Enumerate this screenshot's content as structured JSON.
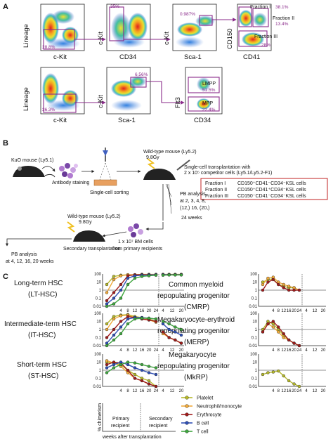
{
  "panels": {
    "A": "A",
    "B": "B",
    "C": "C"
  },
  "panelA": {
    "row1": [
      {
        "x_label": "c-Kit",
        "y_label": "Lineage",
        "gates": [
          "28.8%"
        ]
      },
      {
        "x_label": "CD34",
        "y_label": "c-Kit",
        "gates": [
          "35%"
        ]
      },
      {
        "x_label": "Sca-1",
        "y_label": "c-Kit",
        "gates": [
          "0.987%"
        ]
      },
      {
        "x_label": "CD41",
        "y_label": "CD150",
        "gates": [
          "Fraction I",
          "38.1%",
          "Fraction II",
          "13.4%",
          "Fraction III",
          "28%"
        ]
      }
    ],
    "row2": [
      {
        "x_label": "c-Kit",
        "y_label": "Lineage",
        "gates": [
          "36.3%"
        ]
      },
      {
        "x_label": "Sca-1",
        "y_label": "c-Kit",
        "gates": [
          "6.56%"
        ]
      },
      {
        "x_label": "CD34",
        "y_label": "Flt3",
        "gates": [
          "LMPP",
          "51.5%",
          "MPP",
          "22.4%"
        ]
      }
    ]
  },
  "panelB": {
    "kuo_mouse": "KuO mouse (Ly5.1)",
    "antibody_staining": "Antibody staining",
    "single_cell_sorting": "Single-cell sorting",
    "recipient1_line1": "Wild-type mouse (Ly5.2)",
    "recipient1_line2": "9.8Gy",
    "transplant_line1": "Single-cell transplantation with",
    "transplant_line2": "2 x 10⁵ competitor cells (Ly5.1/Ly5.2-F1)",
    "fractions": [
      {
        "name": "Fraction I",
        "phenotype": "CD150⁺CD41⁻CD34⁻KSL cells"
      },
      {
        "name": "Fraction II",
        "phenotype": "CD150⁺CD41⁺CD34⁻KSL cells"
      },
      {
        "name": "Fraction III",
        "phenotype": "CD150⁻CD41⁻CD34⁻KSL cells"
      }
    ],
    "pb_analysis_lines": [
      "PB analysis",
      "at 2, 3, 4, 8,",
      "(12,) 16, (20,)",
      "24 weeks"
    ],
    "bm_cells_line1": "1 x 10⁷ BM cells",
    "bm_cells_line2": "from primary recipients",
    "recipient2_line1": "Wild-type mouse (Ly5.2)",
    "recipient2_line2": "9.8Gy",
    "secondary_transplantation": "Secondary transplantation",
    "pb2_line1": "PB analysis",
    "pb2_line2": "at 4, 12, 16, 20 weeks"
  },
  "panelC": {
    "categories_left": [
      {
        "line1": "Long-term HSC",
        "line2": "(LT-HSC)"
      },
      {
        "line1": "Intermediate-term HSC",
        "line2": "(IT-HSC)"
      },
      {
        "line1": "Short-term HSC",
        "line2": "(ST-HSC)"
      }
    ],
    "categories_right": [
      {
        "line1": "Common myeloid",
        "line2": "repopulating progenitor",
        "line3": "(CMRP)"
      },
      {
        "line1": "Megakaryocyte-erythroid",
        "line2": "repopulating progenitor",
        "line3": "(MERP)"
      },
      {
        "line1": "Megakaryocyte",
        "line2": "repopulating progenitor",
        "line3": "(MkRP)"
      }
    ],
    "y_ticks": [
      "100",
      "10",
      "1",
      "0.1",
      "0.01"
    ],
    "x_ticks_left": [
      "4",
      "8",
      "12",
      "16",
      "20",
      "24"
    ],
    "x_ticks_right": [
      "4",
      "12",
      "20"
    ],
    "template": {
      "y_label": "% chimerism",
      "primary": "Primary",
      "recipient": "recipient",
      "secondary": "Secondary",
      "recipient2": "recipient",
      "x_label": "weeks after transplantation"
    },
    "legend": [
      {
        "name": "Platelet",
        "color": "#b5b82a"
      },
      {
        "name": "Neutrophil/monocyte",
        "color": "#f0a93a"
      },
      {
        "name": "Erythrocyte",
        "color": "#a01b1b"
      },
      {
        "name": "B cell",
        "color": "#2f4fb5"
      },
      {
        "name": "T cell",
        "color": "#3fa63f"
      }
    ]
  },
  "chart_data": [
    {
      "type": "line",
      "panel": "LT-HSC",
      "x": [
        2,
        3,
        4,
        8,
        12,
        16,
        20,
        24,
        4,
        12,
        16,
        20
      ],
      "series": [
        {
          "name": "Platelet",
          "values": [
            5,
            50,
            70,
            80,
            80,
            90,
            90,
            90,
            90,
            90,
            90,
            90
          ]
        },
        {
          "name": "Neutrophil/monocyte",
          "values": [
            0.5,
            20,
            60,
            80,
            80,
            85,
            85,
            85,
            85,
            85,
            85,
            85
          ]
        },
        {
          "name": "Erythrocyte",
          "values": [
            0.05,
            0.5,
            5,
            60,
            80,
            80,
            80,
            80,
            80,
            80,
            80,
            80
          ]
        },
        {
          "name": "B cell",
          "values": [
            0.02,
            0.1,
            1,
            30,
            60,
            70,
            75,
            80,
            80,
            80,
            80,
            80
          ]
        },
        {
          "name": "T cell",
          "values": [
            0.01,
            0.02,
            0.1,
            5,
            30,
            50,
            60,
            70,
            70,
            75,
            75,
            75
          ]
        }
      ]
    },
    {
      "type": "line",
      "panel": "IT-HSC",
      "x": [
        2,
        3,
        4,
        8,
        12,
        16,
        20,
        24,
        4,
        12,
        16,
        20
      ],
      "series": [
        {
          "name": "Platelet",
          "values": [
            5,
            40,
            60,
            70,
            40,
            30,
            20,
            10,
            0.5,
            0.1,
            0.05,
            0.02
          ]
        },
        {
          "name": "Neutrophil/monocyte",
          "values": [
            1,
            20,
            50,
            60,
            30,
            20,
            15,
            8,
            0.3,
            0.1,
            0.05,
            0.02
          ]
        },
        {
          "name": "Erythrocyte",
          "values": [
            0.1,
            1,
            10,
            40,
            30,
            20,
            15,
            10,
            0.5,
            0.1,
            0.05,
            0.02
          ]
        },
        {
          "name": "B cell",
          "values": [
            0.02,
            0.2,
            2,
            20,
            30,
            30,
            25,
            20,
            5,
            1,
            0.5,
            0.2
          ]
        },
        {
          "name": "T cell",
          "values": [
            0.01,
            0.05,
            0.3,
            5,
            20,
            25,
            25,
            20,
            10,
            5,
            2,
            1
          ]
        }
      ]
    },
    {
      "type": "line",
      "panel": "ST-HSC",
      "x": [
        2,
        3,
        4,
        8,
        12,
        16,
        20,
        24
      ],
      "series": [
        {
          "name": "Platelet",
          "values": [
            10,
            8,
            5,
            1,
            0.3,
            0.1,
            0.05,
            0.01
          ]
        },
        {
          "name": "Neutrophil/monocyte",
          "values": [
            15,
            8,
            3,
            0.5,
            0.1,
            0.05,
            0.02,
            0.01
          ]
        },
        {
          "name": "Erythrocyte",
          "values": [
            5,
            10,
            8,
            1,
            0.1,
            0.05,
            0.02,
            0.01
          ]
        },
        {
          "name": "B cell",
          "values": [
            2,
            5,
            10,
            5,
            2,
            1,
            0.5,
            0.3
          ]
        },
        {
          "name": "T cell",
          "values": [
            0.5,
            2,
            5,
            10,
            8,
            5,
            3,
            2
          ]
        }
      ]
    },
    {
      "type": "line",
      "panel": "CMRP",
      "x": [
        2,
        3,
        4,
        8,
        12,
        16,
        20,
        24
      ],
      "series": [
        {
          "name": "Platelet",
          "values": [
            10,
            20,
            25,
            5,
            3,
            2,
            2,
            1
          ]
        },
        {
          "name": "Neutrophil/monocyte",
          "values": [
            5,
            30,
            40,
            10,
            5,
            3,
            2,
            1
          ]
        },
        {
          "name": "Erythrocyte",
          "values": [
            1,
            10,
            20,
            5,
            2,
            1,
            1,
            1
          ]
        }
      ]
    },
    {
      "type": "line",
      "panel": "MERP",
      "x": [
        2,
        3,
        4,
        8,
        12,
        16,
        20,
        24
      ],
      "series": [
        {
          "name": "Platelet",
          "values": [
            1,
            10,
            5,
            1,
            0.2,
            0.05,
            0.02,
            0.01
          ]
        },
        {
          "name": "Neutrophil/monocyte",
          "values": [
            0.5,
            5,
            2,
            0.5,
            0.1,
            0.05,
            0.02,
            0.01
          ]
        },
        {
          "name": "Erythrocyte",
          "values": [
            0.5,
            5,
            10,
            2,
            0.3,
            0.05,
            0.02,
            0.01
          ]
        }
      ]
    },
    {
      "type": "line",
      "panel": "MkRP",
      "x": [
        2,
        3,
        4,
        8,
        12,
        16,
        20,
        24
      ],
      "series": [
        {
          "name": "Platelet",
          "values": [
            0.3,
            0.5,
            0.6,
            0.8,
            0.2,
            0.05,
            0.02,
            0.01
          ]
        }
      ]
    }
  ]
}
